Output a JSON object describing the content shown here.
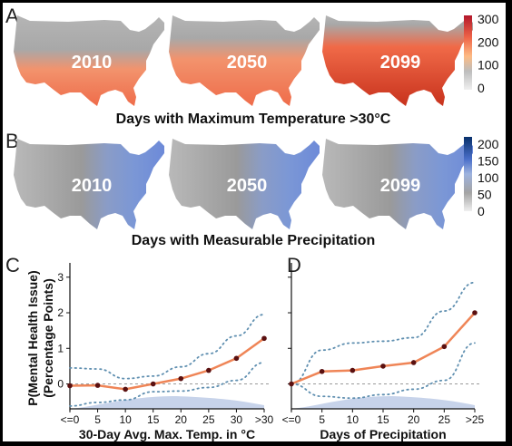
{
  "panelA": {
    "letter": "A",
    "title": "Days with Maximum Temperature >30°C",
    "maps": [
      {
        "year": "2010",
        "intensity": 0.35
      },
      {
        "year": "2050",
        "intensity": 0.6
      },
      {
        "year": "2099",
        "intensity": 0.9
      }
    ],
    "colorbar": {
      "ticks": [
        "300",
        "200",
        "100",
        "0"
      ],
      "colors": [
        "#b2182b",
        "#ef6548",
        "#fdbb84",
        "#bdbdbd",
        "#f0f0f0"
      ]
    }
  },
  "panelB": {
    "letter": "B",
    "title": "Days with Measurable Precipitation",
    "maps": [
      {
        "year": "2010"
      },
      {
        "year": "2050"
      },
      {
        "year": "2099"
      }
    ],
    "colorbar": {
      "ticks": [
        "200",
        "150",
        "100",
        "50",
        "0"
      ],
      "colors": [
        "#08306b",
        "#4a6fc9",
        "#9eb3de",
        "#a3a3a3",
        "#f0f0f0"
      ]
    }
  },
  "chart_data": [
    {
      "type": "line",
      "panel": "C",
      "xlabel": "30-Day Avg. Max. Temp. in °C",
      "ylabel": "P(Mental Health Issue)\n(Percentage Points)",
      "categories": [
        "<=0",
        "5",
        "10",
        "15",
        "20",
        "25",
        "30",
        ">30"
      ],
      "x": [
        0,
        5,
        10,
        15,
        20,
        25,
        30,
        35
      ],
      "values": [
        -0.05,
        -0.04,
        -0.15,
        0.0,
        0.15,
        0.38,
        0.72,
        1.28
      ],
      "ci_upper": [
        0.45,
        0.42,
        0.15,
        0.22,
        0.48,
        0.85,
        1.35,
        1.95
      ],
      "ci_lower": [
        -0.62,
        -0.52,
        -0.45,
        -0.22,
        -0.2,
        -0.1,
        0.1,
        0.6
      ],
      "yticks": [
        "0",
        "1",
        "2",
        "3"
      ],
      "ylim": [
        -0.7,
        3.3
      ],
      "color": "#ef8557"
    },
    {
      "type": "line",
      "panel": "D",
      "xlabel": "Days of Precipitation",
      "categories": [
        "<=0",
        "5",
        "10",
        "15",
        "20",
        "25",
        ">25"
      ],
      "x": [
        0,
        5,
        10,
        15,
        20,
        25,
        30
      ],
      "values": [
        0.0,
        0.35,
        0.38,
        0.5,
        0.6,
        1.05,
        2.0
      ],
      "ci_upper": [
        0.0,
        0.95,
        1.15,
        1.2,
        1.3,
        2.05,
        2.85
      ],
      "ci_lower": [
        0.0,
        -0.35,
        -0.4,
        -0.3,
        -0.15,
        0.1,
        1.15
      ],
      "yticks": [
        "0",
        "1",
        "2",
        "3"
      ],
      "ylim": [
        -0.7,
        3.3
      ],
      "color": "#ef8557"
    }
  ]
}
